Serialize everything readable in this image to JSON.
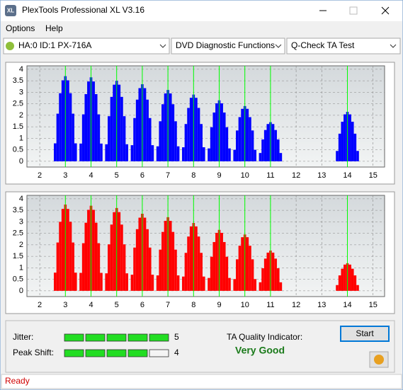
{
  "window": {
    "title": "PlexTools Professional XL V3.16",
    "icon": "XL"
  },
  "menu": [
    "Options",
    "Help"
  ],
  "toolbar": {
    "drive": "HA:0 ID:1  PX-716A",
    "function": "DVD Diagnostic Functions",
    "test": "Q-Check TA Test"
  },
  "chart_data": [
    {
      "type": "bar",
      "color": "#0000ff",
      "marker_color": "#00ff00",
      "markers": [
        3,
        4,
        5,
        6,
        7,
        8,
        9,
        10,
        11,
        14
      ],
      "xlim": [
        1.5,
        15.45
      ],
      "ylim": [
        -0.25,
        4.15
      ],
      "xticks": [
        2,
        3,
        4,
        5,
        6,
        7,
        8,
        9,
        10,
        11,
        12,
        13,
        14,
        15
      ],
      "yticks": [
        0,
        0.5,
        1,
        1.5,
        2,
        2.5,
        3,
        3.5,
        4
      ],
      "grid": true,
      "x": [
        2.6,
        2.7,
        2.8,
        2.9,
        3,
        3.1,
        3.2,
        3.3,
        3.4,
        3.6,
        3.7,
        3.8,
        3.9,
        4,
        4.1,
        4.2,
        4.3,
        4.4,
        4.6,
        4.7,
        4.8,
        4.9,
        5,
        5.1,
        5.2,
        5.3,
        5.4,
        5.6,
        5.7,
        5.8,
        5.9,
        6,
        6.1,
        6.2,
        6.3,
        6.4,
        6.6,
        6.7,
        6.8,
        6.9,
        7,
        7.1,
        7.2,
        7.3,
        7.4,
        7.6,
        7.7,
        7.8,
        7.9,
        8,
        8.1,
        8.2,
        8.3,
        8.4,
        8.6,
        8.7,
        8.8,
        8.9,
        9,
        9.1,
        9.2,
        9.3,
        9.4,
        9.6,
        9.7,
        9.8,
        9.9,
        10,
        10.1,
        10.2,
        10.3,
        10.4,
        10.6,
        10.7,
        10.8,
        10.9,
        11,
        11.1,
        11.2,
        11.3,
        11.4,
        13.6,
        13.7,
        13.8,
        13.9,
        14,
        14.1,
        14.2,
        14.3,
        14.4
      ],
      "values": [
        0.78,
        2.07,
        2.96,
        3.52,
        3.7,
        3.52,
        2.96,
        2.07,
        0.78,
        0.77,
        2.04,
        2.92,
        3.47,
        3.65,
        3.47,
        2.92,
        2.04,
        0.77,
        0.74,
        1.96,
        2.8,
        3.33,
        3.5,
        3.33,
        2.8,
        1.96,
        0.74,
        0.7,
        1.88,
        2.68,
        3.18,
        3.35,
        3.18,
        2.68,
        1.88,
        0.7,
        0.65,
        1.74,
        2.48,
        2.95,
        3.1,
        2.95,
        2.48,
        1.74,
        0.65,
        0.61,
        1.62,
        2.32,
        2.76,
        2.9,
        2.76,
        2.32,
        1.62,
        0.61,
        0.56,
        1.48,
        2.12,
        2.52,
        2.65,
        2.52,
        2.12,
        1.48,
        0.56,
        0.5,
        1.34,
        1.92,
        2.28,
        2.4,
        2.28,
        1.92,
        1.34,
        0.5,
        0.36,
        0.95,
        1.36,
        1.62,
        1.7,
        1.62,
        1.36,
        0.95,
        0.36,
        0.45,
        1.2,
        1.72,
        2.04,
        2.15,
        2.04,
        1.72,
        1.2,
        0.45
      ]
    },
    {
      "type": "bar",
      "color": "#ff0000",
      "marker_color": "#00ff00",
      "markers": [
        3,
        4,
        5,
        6,
        7,
        8,
        9,
        10,
        11,
        14
      ],
      "xlim": [
        1.5,
        15.45
      ],
      "ylim": [
        -0.25,
        4.15
      ],
      "xticks": [
        2,
        3,
        4,
        5,
        6,
        7,
        8,
        9,
        10,
        11,
        12,
        13,
        14,
        15
      ],
      "yticks": [
        0,
        0.5,
        1,
        1.5,
        2,
        2.5,
        3,
        3.5,
        4
      ],
      "grid": true,
      "x": [
        2.6,
        2.7,
        2.8,
        2.9,
        3,
        3.1,
        3.2,
        3.3,
        3.4,
        3.6,
        3.7,
        3.8,
        3.9,
        4,
        4.1,
        4.2,
        4.3,
        4.4,
        4.6,
        4.7,
        4.8,
        4.9,
        5,
        5.1,
        5.2,
        5.3,
        5.4,
        5.6,
        5.7,
        5.8,
        5.9,
        6,
        6.1,
        6.2,
        6.3,
        6.4,
        6.6,
        6.7,
        6.8,
        6.9,
        7,
        7.1,
        7.2,
        7.3,
        7.4,
        7.6,
        7.7,
        7.8,
        7.9,
        8,
        8.1,
        8.2,
        8.3,
        8.4,
        8.6,
        8.7,
        8.8,
        8.9,
        9,
        9.1,
        9.2,
        9.3,
        9.4,
        9.6,
        9.7,
        9.8,
        9.9,
        10,
        10.1,
        10.2,
        10.3,
        10.4,
        10.6,
        10.7,
        10.8,
        10.9,
        11,
        11.1,
        11.2,
        11.3,
        11.4,
        13.6,
        13.7,
        13.8,
        13.9,
        14,
        14.1,
        14.2,
        14.3,
        14.4
      ],
      "values": [
        0.79,
        2.1,
        3,
        3.56,
        3.75,
        3.56,
        3,
        2.1,
        0.79,
        0.78,
        2.07,
        2.96,
        3.52,
        3.7,
        3.52,
        2.96,
        2.07,
        0.78,
        0.76,
        2.02,
        2.88,
        3.42,
        3.6,
        3.42,
        2.88,
        2.02,
        0.76,
        0.7,
        1.88,
        2.68,
        3.18,
        3.35,
        3.18,
        2.68,
        1.88,
        0.7,
        0.67,
        1.79,
        2.56,
        3.04,
        3.2,
        3.04,
        2.56,
        1.79,
        0.67,
        0.62,
        1.65,
        2.36,
        2.8,
        2.95,
        2.8,
        2.36,
        1.65,
        0.62,
        0.56,
        1.48,
        2.12,
        2.52,
        2.65,
        2.52,
        2.12,
        1.48,
        0.56,
        0.51,
        1.37,
        1.96,
        2.33,
        2.45,
        2.33,
        1.96,
        1.37,
        0.51,
        0.37,
        0.98,
        1.4,
        1.66,
        1.75,
        1.66,
        1.4,
        0.98,
        0.37,
        0.25,
        0.67,
        0.96,
        1.14,
        1.2,
        1.14,
        0.96,
        0.67,
        0.25
      ]
    }
  ],
  "results": {
    "jitter_label": "Jitter:",
    "jitter": 5,
    "peak_shift_label": "Peak Shift:",
    "peak_shift": 4,
    "quality_label": "TA Quality Indicator:",
    "quality": "Very Good",
    "start": "Start"
  },
  "status": "Ready"
}
